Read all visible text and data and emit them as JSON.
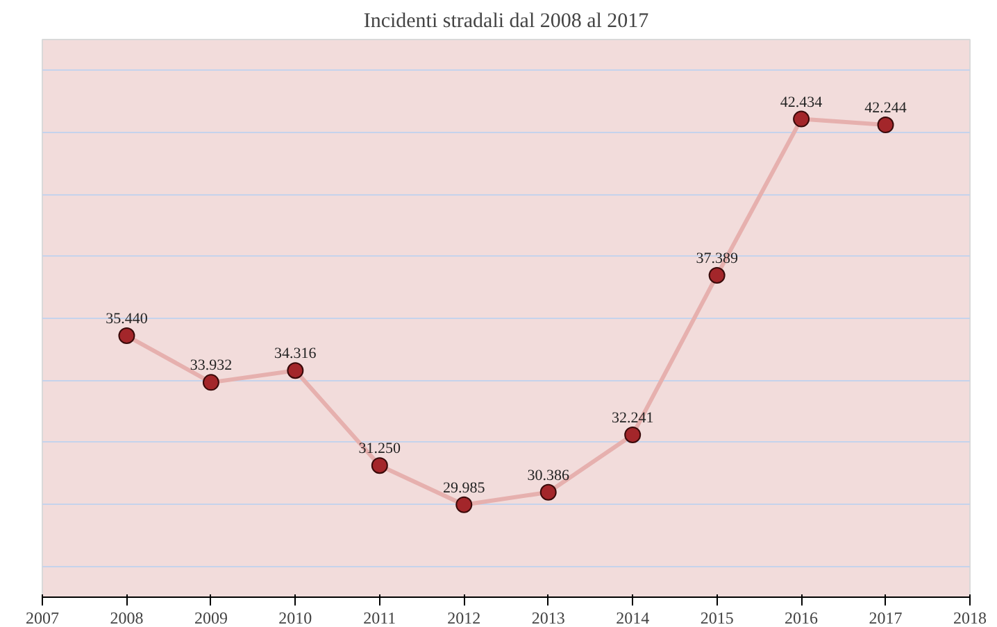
{
  "chart_data": {
    "type": "line",
    "title": "Incidenti stradali dal 2008 al 2017",
    "x": [
      2008,
      2009,
      2010,
      2011,
      2012,
      2013,
      2014,
      2015,
      2016,
      2017
    ],
    "series": [
      {
        "color": "#a3262a",
        "values": [
          35440,
          33932,
          34316,
          31250,
          29985,
          30386,
          32241,
          37389,
          42434,
          42244
        ],
        "value_labels": [
          "35.440",
          "33.932",
          "34.316",
          "31.250",
          "29.985",
          "30.386",
          "32.241",
          "37.389",
          "42.434",
          "42.244"
        ]
      }
    ],
    "xlim": [
      2007,
      2018
    ],
    "xticks": [
      2007,
      2008,
      2009,
      2010,
      2011,
      2012,
      2013,
      2014,
      2015,
      2016,
      2017,
      2018
    ],
    "ylim": [
      27000,
      45000
    ],
    "yticks": [
      {
        "value": 28000,
        "label": null
      },
      {
        "value": 30000,
        "label": null
      },
      {
        "value": 32000,
        "label": null
      },
      {
        "value": 34000,
        "label": null
      },
      {
        "value": 36000,
        "label": null
      },
      {
        "value": 38000,
        "label": null
      },
      {
        "value": 40000,
        "label": null
      },
      {
        "value": 42000,
        "label": null
      },
      {
        "value": 44000,
        "label": null
      }
    ],
    "tick_labels": "x",
    "grid": "y",
    "marker": "circle",
    "line_style": "solid"
  }
}
